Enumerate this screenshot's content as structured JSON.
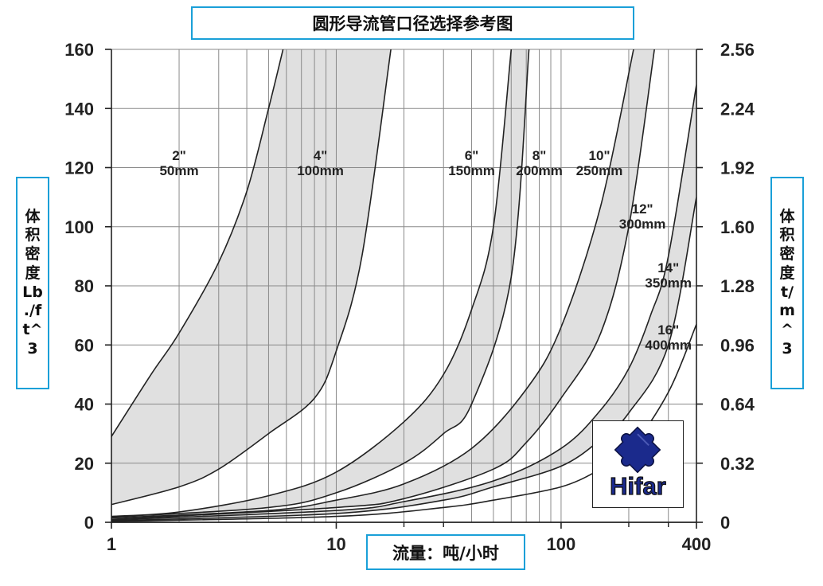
{
  "title": "圆形导流管口径选择参考图",
  "xlabel": "流量：吨/小时",
  "ylabel_left": [
    "体",
    "积",
    "密",
    "度",
    "Lb",
    "./f",
    "t^",
    "3"
  ],
  "ylabel_right": [
    "体",
    "积",
    "密",
    "度",
    "t/",
    "m",
    "^",
    "3"
  ],
  "logo": {
    "text": "Hifar",
    "icon": "puzzle-piece-icon",
    "color": "#1b2a8c"
  },
  "colors": {
    "frame": "#1aa0d8",
    "band": "#e0e0e0",
    "curve": "#222222"
  },
  "chart_data": {
    "type": "line",
    "x_scale": "log",
    "xlim": [
      1,
      400
    ],
    "ylim": [
      0,
      160
    ],
    "x_ticks": [
      {
        "value": 1,
        "label": "1"
      },
      {
        "value": 10,
        "label": "10"
      },
      {
        "value": 100,
        "label": "100"
      },
      {
        "value": 400,
        "label": "400"
      }
    ],
    "y_ticks": [
      "0",
      "20",
      "40",
      "60",
      "80",
      "100",
      "120",
      "140",
      "160"
    ],
    "y2_ticks": [
      "0",
      "0.32",
      "0.64",
      "0.96",
      "1.28",
      "1.60",
      "1.92",
      "2.24",
      "2.56"
    ],
    "grid": true,
    "curves": [
      {
        "x": [
          1,
          1.5,
          2,
          3,
          4,
          5,
          5.8
        ],
        "y": [
          29,
          50,
          64,
          88,
          112,
          140,
          160
        ]
      },
      {
        "x": [
          1,
          2,
          3,
          5,
          8,
          10,
          13,
          17.5
        ],
        "y": [
          6,
          12,
          18,
          30,
          42,
          58,
          90,
          160
        ]
      },
      {
        "x": [
          1,
          2,
          5,
          10,
          20,
          30,
          40,
          50,
          60
        ],
        "y": [
          2,
          3.5,
          9,
          17,
          34,
          50,
          72,
          100,
          160
        ]
      },
      {
        "x": [
          1,
          5,
          10,
          20,
          30,
          40,
          60,
          72
        ],
        "y": [
          1.8,
          5,
          10,
          20,
          30,
          40,
          83,
          160
        ]
      },
      {
        "x": [
          1,
          5,
          10,
          20,
          40,
          70,
          100,
          150,
          210
        ],
        "y": [
          1.5,
          4,
          7.5,
          13,
          25,
          45,
          66,
          107,
          160
        ]
      },
      {
        "x": [
          1,
          10,
          20,
          50,
          70,
          100,
          150,
          200,
          260
        ],
        "y": [
          1,
          5,
          8,
          18,
          27,
          42,
          64,
          100,
          160
        ]
      },
      {
        "x": [
          1,
          10,
          20,
          50,
          100,
          150,
          200,
          250,
          300,
          400
        ],
        "y": [
          0.8,
          4,
          7,
          14,
          25,
          38,
          52,
          70,
          90,
          148
        ]
      },
      {
        "x": [
          1,
          10,
          30,
          50,
          100,
          150,
          200,
          300,
          400
        ],
        "y": [
          0.5,
          3,
          7.5,
          12,
          19,
          28,
          37,
          60,
          110
        ]
      },
      {
        "x": [
          1,
          10,
          30,
          50,
          100,
          150,
          200,
          300,
          400
        ],
        "y": [
          0.3,
          2,
          5,
          7.5,
          12,
          18,
          24,
          44,
          67
        ]
      }
    ],
    "shaded_bands": [
      [
        0,
        1
      ],
      [
        2,
        3
      ],
      [
        4,
        5
      ],
      [
        6,
        7
      ]
    ],
    "annotations": [
      {
        "lines": [
          "2\"",
          "50mm"
        ],
        "x": 2,
        "y": 122
      },
      {
        "lines": [
          "4\"",
          "100mm"
        ],
        "x": 8.5,
        "y": 122
      },
      {
        "lines": [
          "6\"",
          "150mm"
        ],
        "x": 40,
        "y": 122
      },
      {
        "lines": [
          "8\"",
          "200mm"
        ],
        "x": 80,
        "y": 122
      },
      {
        "lines": [
          "10\"",
          "250mm"
        ],
        "x": 148,
        "y": 122
      },
      {
        "lines": [
          "12\"",
          "300mm"
        ],
        "x": 230,
        "y": 104
      },
      {
        "lines": [
          "14\"",
          "350mm"
        ],
        "x": 300,
        "y": 84
      },
      {
        "lines": [
          "16\"",
          "400mm"
        ],
        "x": 300,
        "y": 63
      }
    ]
  }
}
